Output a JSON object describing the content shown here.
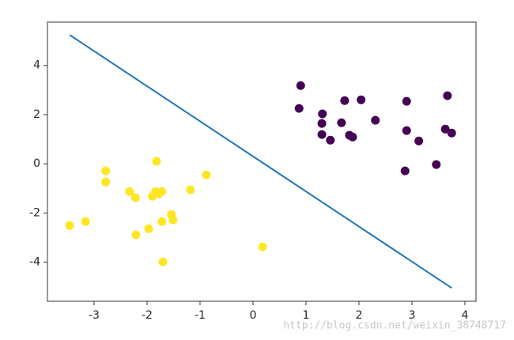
{
  "chart_data": {
    "type": "scatter",
    "xlim": [
      -3.88,
      4.21
    ],
    "ylim": [
      -5.59,
      5.76
    ],
    "xticks": [
      -3,
      -2,
      -1,
      0,
      1,
      2,
      3,
      4
    ],
    "yticks": [
      -4,
      -2,
      0,
      2,
      4
    ],
    "series": [
      {
        "color": "#fde725",
        "x": [
          -3.46,
          -3.16,
          -2.78,
          -2.78,
          -2.33,
          -2.22,
          -2.21,
          -1.82,
          -1.97,
          -1.9,
          -1.84,
          -1.78,
          -1.72,
          -1.72,
          -1.7,
          -1.54,
          -1.51,
          -1.18,
          -0.88,
          0.18
        ],
        "values": [
          -2.51,
          -2.35,
          -0.29,
          -0.74,
          -1.13,
          -1.38,
          -2.89,
          0.1,
          -2.64,
          -1.32,
          -1.13,
          -1.22,
          -1.13,
          -2.35,
          -3.99,
          -2.06,
          -2.28,
          -1.06,
          -0.45,
          -3.38
        ]
      },
      {
        "color": "#440154",
        "x": [
          0.9,
          0.87,
          1.31,
          1.3,
          1.3,
          1.46,
          1.67,
          1.73,
          1.82,
          1.88,
          2.04,
          2.31,
          2.9,
          2.9,
          2.87,
          3.13,
          3.46,
          3.63,
          3.67,
          3.75
        ],
        "values": [
          3.18,
          2.25,
          2.03,
          1.64,
          1.19,
          0.96,
          1.67,
          2.57,
          1.16,
          1.09,
          2.6,
          1.77,
          2.54,
          1.35,
          -0.29,
          0.93,
          -0.03,
          1.41,
          2.77,
          1.25
        ]
      },
      {
        "type": "line",
        "color": "#1f77b4",
        "x": [
          -3.46,
          3.75
        ],
        "values": [
          5.24,
          -5.05
        ]
      }
    ],
    "watermark": "http://blog.csdn.net/weixin_38748717"
  }
}
